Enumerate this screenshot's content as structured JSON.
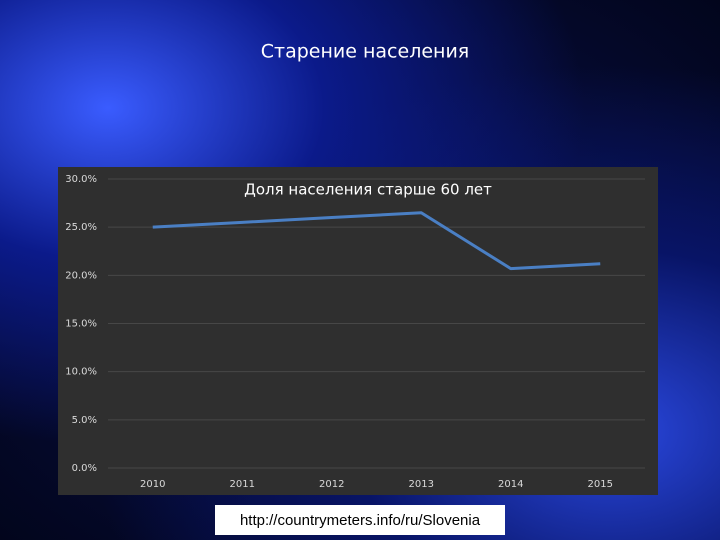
{
  "slide": {
    "title": "Старение населения",
    "source": "http://countrymeters.info/ru/Slovenia"
  },
  "chart_data": {
    "type": "line",
    "title": "Доля населения старше 60 лет",
    "categories": [
      "2010",
      "2011",
      "2012",
      "2013",
      "2014",
      "2015"
    ],
    "series": [
      {
        "name": "Доля населения старше 60 лет",
        "color": "#4a7fc4",
        "values": [
          25.0,
          25.5,
          26.0,
          26.5,
          20.7,
          21.2
        ]
      }
    ],
    "ylim": [
      0,
      30
    ],
    "yticks": [
      {
        "value": 0,
        "label": "0.0%"
      },
      {
        "value": 5,
        "label": "5.0%"
      },
      {
        "value": 10,
        "label": "10.0%"
      },
      {
        "value": 15,
        "label": "15.0%"
      },
      {
        "value": 20,
        "label": "20.0%"
      },
      {
        "value": 25,
        "label": "25.0%"
      },
      {
        "value": 30,
        "label": "30.0%"
      }
    ],
    "grid": true
  }
}
